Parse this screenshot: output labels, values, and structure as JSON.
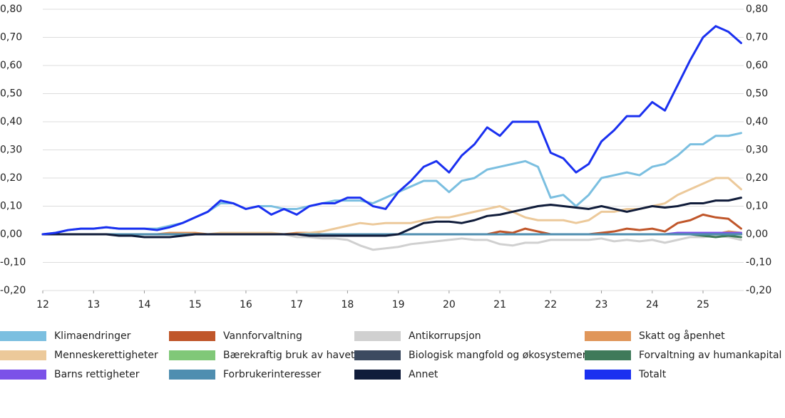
{
  "chart_data": {
    "type": "line",
    "x": [
      12,
      12.25,
      12.5,
      12.75,
      13,
      13.25,
      13.5,
      13.75,
      14,
      14.25,
      14.5,
      14.75,
      15,
      15.25,
      15.5,
      15.75,
      16,
      16.25,
      16.5,
      16.75,
      17,
      17.25,
      17.5,
      17.75,
      18,
      18.25,
      18.5,
      18.75,
      19,
      19.25,
      19.5,
      19.75,
      20,
      20.25,
      20.5,
      20.75,
      21,
      21.25,
      21.5,
      21.75,
      22,
      22.25,
      22.5,
      22.75,
      23,
      23.25,
      23.5,
      23.75,
      24,
      24.25,
      24.5,
      24.75,
      25,
      25.25,
      25.5,
      25.75
    ],
    "xlim": [
      12,
      25.8
    ],
    "xticks": [
      12,
      13,
      14,
      15,
      16,
      17,
      18,
      19,
      20,
      21,
      22,
      23,
      24,
      25
    ],
    "ylim": [
      -0.2,
      0.8
    ],
    "yticks": [
      {
        "value": -0.2,
        "label": "-0,20"
      },
      {
        "value": -0.1,
        "label": "-0,10"
      },
      {
        "value": 0,
        "label": "0,00"
      },
      {
        "value": 0.1,
        "label": "0,10"
      },
      {
        "value": 0.2,
        "label": "0,20"
      },
      {
        "value": 0.3,
        "label": "0,30"
      },
      {
        "value": 0.4,
        "label": "0,40"
      },
      {
        "value": 0.5,
        "label": "0,50"
      },
      {
        "value": 0.6,
        "label": "0,60"
      },
      {
        "value": 0.7,
        "label": "0,70"
      },
      {
        "value": 0.8,
        "label": "0,80"
      }
    ],
    "y2lim": [
      -0.2,
      0.8
    ],
    "y2ticks": [
      {
        "value": -0.2,
        "label": "-0,20"
      },
      {
        "value": -0.1,
        "label": "-0,10"
      },
      {
        "value": 0,
        "label": "0,00"
      },
      {
        "value": 0.1,
        "label": "0,10"
      },
      {
        "value": 0.2,
        "label": "0,20"
      },
      {
        "value": 0.3,
        "label": "0,30"
      },
      {
        "value": 0.4,
        "label": "0,40"
      },
      {
        "value": 0.5,
        "label": "0,50"
      },
      {
        "value": 0.6,
        "label": "0,60"
      },
      {
        "value": 0.7,
        "label": "0,70"
      },
      {
        "value": 0.8,
        "label": "0,80"
      }
    ],
    "grid": true,
    "series": [
      {
        "name": "Klimaendringer",
        "color": "#7bbfe0",
        "values": [
          0,
          0.005,
          0.015,
          0.02,
          0.02,
          0.025,
          0.02,
          0.02,
          0.02,
          0.02,
          0.03,
          0.04,
          0.06,
          0.08,
          0.11,
          0.11,
          0.09,
          0.1,
          0.1,
          0.09,
          0.09,
          0.1,
          0.11,
          0.12,
          0.12,
          0.12,
          0.11,
          0.13,
          0.15,
          0.17,
          0.19,
          0.19,
          0.15,
          0.19,
          0.2,
          0.23,
          0.24,
          0.25,
          0.26,
          0.24,
          0.13,
          0.14,
          0.1,
          0.14,
          0.2,
          0.21,
          0.22,
          0.21,
          0.24,
          0.25,
          0.28,
          0.32,
          0.32,
          0.35,
          0.35,
          0.36
        ]
      },
      {
        "name": "Vannforvaltning",
        "color": "#c0562a",
        "values": [
          0,
          0,
          0,
          0,
          0,
          0,
          0,
          0,
          0,
          0,
          0,
          0,
          0,
          0,
          0,
          0,
          0,
          0,
          0,
          0,
          0,
          0,
          0,
          0,
          0,
          0,
          0,
          0,
          0,
          0,
          0,
          0,
          0,
          0,
          0,
          0,
          0.01,
          0.005,
          0.02,
          0.01,
          0,
          0,
          0,
          0,
          0.005,
          0.01,
          0.02,
          0.015,
          0.02,
          0.01,
          0.04,
          0.05,
          0.07,
          0.06,
          0.055,
          0.02
        ]
      },
      {
        "name": "Antikorrupsjon",
        "color": "#d0d0d0",
        "values": [
          0,
          0,
          0,
          0,
          0,
          0,
          0,
          0,
          0,
          0,
          0,
          0,
          0,
          0,
          0,
          0,
          0,
          0,
          0,
          0,
          -0.01,
          -0.01,
          -0.015,
          -0.015,
          -0.02,
          -0.04,
          -0.055,
          -0.05,
          -0.045,
          -0.035,
          -0.03,
          -0.025,
          -0.02,
          -0.015,
          -0.02,
          -0.02,
          -0.035,
          -0.04,
          -0.03,
          -0.03,
          -0.02,
          -0.02,
          -0.02,
          -0.02,
          -0.015,
          -0.025,
          -0.02,
          -0.025,
          -0.02,
          -0.03,
          -0.02,
          -0.01,
          -0.01,
          -0.005,
          -0.01,
          -0.02
        ]
      },
      {
        "name": "Skatt og åpenhet",
        "color": "#e0965a",
        "values": [
          0,
          0,
          0,
          0,
          0,
          0,
          0,
          0,
          0,
          0,
          0.005,
          0.005,
          0.005,
          0,
          0,
          0,
          0,
          0,
          0,
          0,
          0.005,
          0.005,
          0,
          0,
          0,
          0,
          0,
          0,
          0,
          0,
          0,
          0,
          0,
          0,
          0,
          0,
          0,
          0,
          0,
          0,
          0,
          0,
          0,
          0,
          0,
          0,
          0,
          0,
          0,
          0,
          0,
          0,
          0,
          0,
          0.01,
          0.005
        ]
      },
      {
        "name": "Menneskerettigheter",
        "color": "#ecc99a",
        "values": [
          0,
          0,
          0,
          0,
          0,
          0,
          0,
          0,
          0,
          0,
          0,
          0,
          0,
          0,
          0.005,
          0.005,
          0.005,
          0.005,
          0.005,
          0,
          0,
          0.005,
          0.01,
          0.02,
          0.03,
          0.04,
          0.035,
          0.04,
          0.04,
          0.04,
          0.05,
          0.06,
          0.06,
          0.07,
          0.08,
          0.09,
          0.1,
          0.08,
          0.06,
          0.05,
          0.05,
          0.05,
          0.04,
          0.05,
          0.08,
          0.08,
          0.09,
          0.09,
          0.1,
          0.11,
          0.14,
          0.16,
          0.18,
          0.2,
          0.2,
          0.16
        ]
      },
      {
        "name": "Bærekraftig bruk av havet",
        "color": "#80c878",
        "values": [
          0,
          0,
          0,
          0,
          0,
          0,
          0,
          0,
          0,
          0,
          0,
          0,
          0,
          0,
          0,
          0,
          0,
          0,
          0,
          0,
          0,
          0,
          0,
          0,
          0,
          0,
          0,
          0,
          0,
          0,
          0,
          0,
          0,
          0,
          0,
          0,
          0,
          0,
          0,
          0,
          0,
          0,
          0,
          0,
          0,
          0,
          0,
          0,
          0,
          0,
          0,
          0,
          0,
          0,
          0,
          0
        ]
      },
      {
        "name": "Biologisk mangfold og økosystemer",
        "color": "#3c4a60",
        "values": [
          0,
          0,
          0,
          0,
          0,
          0,
          0,
          0,
          0,
          0,
          0,
          0,
          0,
          0,
          0,
          0,
          0,
          0,
          0,
          0,
          0,
          0,
          0,
          0,
          0,
          0,
          0,
          0,
          0,
          0,
          0,
          0,
          0,
          0,
          0,
          0,
          0,
          0,
          0,
          0,
          0,
          0,
          0,
          0,
          0,
          0,
          0,
          0,
          0,
          0,
          0,
          0,
          0,
          0,
          0,
          0
        ]
      },
      {
        "name": "Forvaltning av humankapital",
        "color": "#3f7a5a",
        "values": [
          0,
          0,
          0,
          0,
          0,
          0,
          0,
          0,
          0,
          0,
          0,
          0,
          0,
          0,
          0,
          0,
          0,
          0,
          0,
          0,
          0,
          0,
          0,
          0,
          0,
          0,
          0,
          0,
          0,
          0,
          0,
          0,
          0,
          0,
          0,
          0,
          0,
          0,
          0,
          0,
          0,
          0,
          0,
          0,
          0,
          0,
          0,
          0,
          0,
          0,
          0,
          0,
          -0.005,
          -0.01,
          -0.005,
          -0.01
        ]
      },
      {
        "name": "Barns rettigheter",
        "color": "#7b52e8",
        "values": [
          0,
          0,
          0,
          0,
          0,
          0,
          0,
          0,
          0,
          0,
          0,
          0,
          0,
          0,
          0,
          0,
          0,
          0,
          0,
          0,
          0,
          0,
          0,
          0,
          0,
          0,
          0,
          0,
          0,
          0,
          0,
          0,
          0,
          0,
          0,
          0,
          0,
          0,
          0,
          0,
          0,
          0,
          0,
          0,
          0,
          0,
          0,
          0,
          0,
          0,
          0.005,
          0.005,
          0.005,
          0.005,
          0.005,
          0.005
        ]
      },
      {
        "name": "Forbrukerinteresser",
        "color": "#4f8eb0",
        "values": [
          0,
          0,
          0,
          0,
          0,
          0,
          0,
          0,
          0,
          0,
          0,
          0,
          0,
          0,
          0,
          0,
          0,
          0,
          0,
          0,
          0,
          0,
          0,
          0,
          0,
          0,
          0,
          0,
          0,
          0,
          0,
          0,
          0,
          0,
          0,
          0,
          0,
          0,
          0,
          0,
          0,
          0,
          0,
          0,
          0,
          0,
          0,
          0,
          0,
          0,
          0,
          0,
          0,
          0,
          0,
          0
        ]
      },
      {
        "name": "Annet",
        "color": "#101c3a",
        "values": [
          0,
          0,
          0,
          0,
          0,
          0,
          -0.005,
          -0.005,
          -0.01,
          -0.01,
          -0.01,
          -0.005,
          0,
          0,
          0,
          0,
          0,
          0,
          0,
          0,
          0,
          -0.005,
          -0.005,
          -0.005,
          -0.005,
          -0.005,
          -0.005,
          -0.005,
          0,
          0.02,
          0.04,
          0.045,
          0.045,
          0.04,
          0.05,
          0.065,
          0.07,
          0.08,
          0.09,
          0.1,
          0.105,
          0.1,
          0.095,
          0.09,
          0.1,
          0.09,
          0.08,
          0.09,
          0.1,
          0.095,
          0.1,
          0.11,
          0.11,
          0.12,
          0.12,
          0.13
        ]
      },
      {
        "name": "Totalt",
        "color": "#1a30f0",
        "values": [
          0,
          0.005,
          0.015,
          0.02,
          0.02,
          0.025,
          0.02,
          0.02,
          0.02,
          0.015,
          0.025,
          0.04,
          0.06,
          0.08,
          0.12,
          0.11,
          0.09,
          0.1,
          0.07,
          0.09,
          0.07,
          0.1,
          0.11,
          0.11,
          0.13,
          0.13,
          0.1,
          0.09,
          0.15,
          0.19,
          0.24,
          0.26,
          0.22,
          0.28,
          0.32,
          0.38,
          0.35,
          0.4,
          0.4,
          0.4,
          0.29,
          0.27,
          0.22,
          0.25,
          0.33,
          0.37,
          0.42,
          0.42,
          0.47,
          0.44,
          0.53,
          0.62,
          0.7,
          0.74,
          0.72,
          0.68
        ]
      }
    ]
  }
}
